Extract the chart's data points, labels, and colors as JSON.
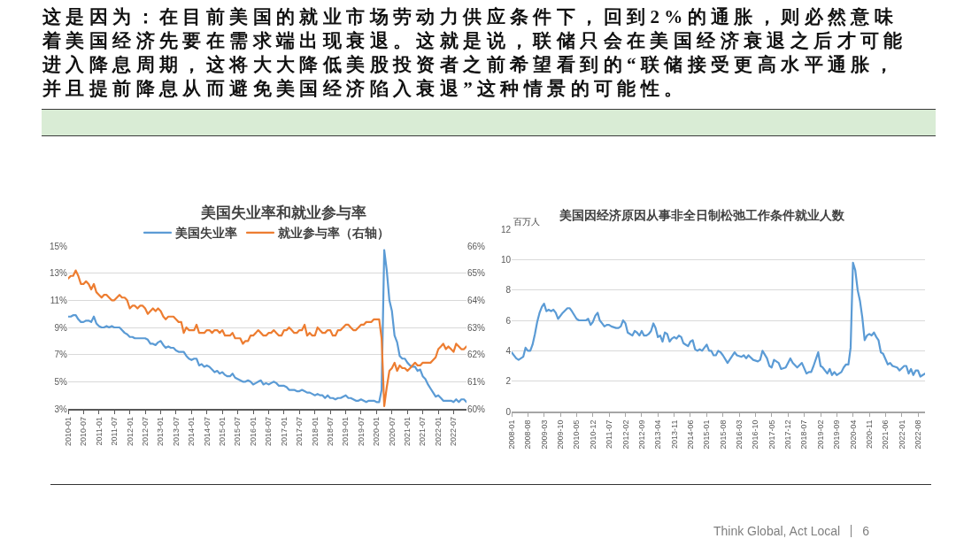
{
  "chart_data": [
    {
      "type": "other",
      "annotations": [
        "这是因为：在目前美国的就业市场劳动力供应条件下，回到2%的通胀，则必然意味着美国经济先要在需求端出现衰退。这就是说，联储只会在美国经济衰退之后才可能进入降息周期，这将大大降低美股投资者之前希望看到的“联储接受更高水平通胀，并且提前降息从而避免美国经济陷入衰退”这种情景的可能性。"
      ]
    },
    {
      "type": "line",
      "title": "美国失业率和就业参与率",
      "x": [
        "2010-01",
        "2010-02",
        "2010-03",
        "2010-04",
        "2010-05",
        "2010-06",
        "2010-07",
        "2010-08",
        "2010-09",
        "2010-10",
        "2010-11",
        "2010-12",
        "2011-01",
        "2011-02",
        "2011-03",
        "2011-04",
        "2011-05",
        "2011-06",
        "2011-07",
        "2011-08",
        "2011-09",
        "2011-10",
        "2011-11",
        "2011-12",
        "2012-01",
        "2012-02",
        "2012-03",
        "2012-04",
        "2012-05",
        "2012-06",
        "2012-07",
        "2012-08",
        "2012-09",
        "2012-10",
        "2012-11",
        "2012-12",
        "2013-01",
        "2013-02",
        "2013-03",
        "2013-04",
        "2013-05",
        "2013-06",
        "2013-07",
        "2013-08",
        "2013-09",
        "2013-10",
        "2013-11",
        "2013-12",
        "2014-01",
        "2014-02",
        "2014-03",
        "2014-04",
        "2014-05",
        "2014-06",
        "2014-07",
        "2014-08",
        "2014-09",
        "2014-10",
        "2014-11",
        "2014-12",
        "2015-01",
        "2015-02",
        "2015-03",
        "2015-04",
        "2015-05",
        "2015-06",
        "2015-07",
        "2015-08",
        "2015-09",
        "2015-10",
        "2015-11",
        "2015-12",
        "2016-01",
        "2016-02",
        "2016-03",
        "2016-04",
        "2016-05",
        "2016-06",
        "2016-07",
        "2016-08",
        "2016-09",
        "2016-10",
        "2016-11",
        "2016-12",
        "2017-01",
        "2017-02",
        "2017-03",
        "2017-04",
        "2017-05",
        "2017-06",
        "2017-07",
        "2017-08",
        "2017-09",
        "2017-10",
        "2017-11",
        "2017-12",
        "2018-01",
        "2018-02",
        "2018-03",
        "2018-04",
        "2018-05",
        "2018-06",
        "2018-07",
        "2018-08",
        "2018-09",
        "2018-10",
        "2018-11",
        "2018-12",
        "2019-01",
        "2019-02",
        "2019-03",
        "2019-04",
        "2019-05",
        "2019-06",
        "2019-07",
        "2019-08",
        "2019-09",
        "2019-10",
        "2019-11",
        "2019-12",
        "2020-01",
        "2020-02",
        "2020-03",
        "2020-04",
        "2020-05",
        "2020-06",
        "2020-07",
        "2020-08",
        "2020-09",
        "2020-10",
        "2020-11",
        "2020-12",
        "2021-01",
        "2021-02",
        "2021-03",
        "2021-04",
        "2021-05",
        "2021-06",
        "2021-07",
        "2021-08",
        "2021-09",
        "2021-10",
        "2021-11",
        "2021-12",
        "2022-01",
        "2022-02",
        "2022-03",
        "2022-04",
        "2022-05",
        "2022-06",
        "2022-07",
        "2022-08",
        "2022-09",
        "2022-10",
        "2022-11",
        "2022-12"
      ],
      "series": [
        {
          "name": "美国失业率",
          "color": "#5b9bd5",
          "values": [
            9.8,
            9.8,
            9.9,
            9.9,
            9.6,
            9.4,
            9.4,
            9.5,
            9.5,
            9.4,
            9.8,
            9.3,
            9.1,
            9.0,
            9.0,
            9.1,
            9.0,
            9.1,
            9.0,
            9.0,
            9.0,
            8.8,
            8.6,
            8.5,
            8.3,
            8.3,
            8.2,
            8.2,
            8.2,
            8.2,
            8.2,
            8.1,
            7.8,
            7.8,
            7.7,
            7.9,
            8.0,
            7.7,
            7.5,
            7.6,
            7.5,
            7.5,
            7.3,
            7.2,
            7.2,
            7.2,
            6.9,
            6.7,
            6.6,
            6.7,
            6.7,
            6.2,
            6.3,
            6.1,
            6.2,
            6.1,
            5.9,
            5.7,
            5.8,
            5.6,
            5.7,
            5.5,
            5.4,
            5.4,
            5.6,
            5.3,
            5.2,
            5.1,
            5.0,
            5.0,
            5.1,
            5.0,
            4.8,
            4.9,
            5.0,
            5.1,
            4.8,
            4.9,
            4.8,
            4.9,
            5.0,
            4.9,
            4.7,
            4.7,
            4.7,
            4.6,
            4.4,
            4.4,
            4.4,
            4.3,
            4.3,
            4.4,
            4.3,
            4.2,
            4.2,
            4.1,
            4.0,
            4.1,
            4.0,
            4.0,
            3.8,
            4.0,
            3.8,
            3.8,
            3.7,
            3.8,
            3.8,
            3.9,
            4.0,
            3.8,
            3.8,
            3.7,
            3.6,
            3.6,
            3.7,
            3.6,
            3.5,
            3.6,
            3.6,
            3.6,
            3.5,
            3.5,
            4.4,
            14.7,
            13.2,
            11.0,
            10.2,
            8.4,
            7.9,
            6.9,
            6.7,
            6.7,
            6.4,
            6.2,
            6.1,
            6.1,
            5.8,
            5.9,
            5.4,
            5.2,
            4.8,
            4.5,
            4.2,
            3.9,
            4.0,
            3.8,
            3.6,
            3.6,
            3.6,
            3.6,
            3.5,
            3.7,
            3.5,
            3.7,
            3.7,
            3.5
          ]
        },
        {
          "name": "就业参与率（右轴）",
          "color": "#ed7d31",
          "axis": "y2",
          "values": [
            64.8,
            64.9,
            64.9,
            65.1,
            64.9,
            64.6,
            64.6,
            64.7,
            64.6,
            64.4,
            64.6,
            64.3,
            64.2,
            64.1,
            64.2,
            64.2,
            64.1,
            64.0,
            64.0,
            64.1,
            64.2,
            64.1,
            64.1,
            64.0,
            63.7,
            63.8,
            63.8,
            63.7,
            63.8,
            63.8,
            63.7,
            63.5,
            63.6,
            63.7,
            63.6,
            63.7,
            63.6,
            63.4,
            63.3,
            63.4,
            63.4,
            63.4,
            63.3,
            63.2,
            63.2,
            62.8,
            63.0,
            62.9,
            62.9,
            62.9,
            63.1,
            62.8,
            62.8,
            62.8,
            62.9,
            62.9,
            62.8,
            62.9,
            62.9,
            62.8,
            62.9,
            62.7,
            62.7,
            62.7,
            62.8,
            62.6,
            62.6,
            62.6,
            62.4,
            62.5,
            62.5,
            62.7,
            62.7,
            62.8,
            62.9,
            62.8,
            62.7,
            62.7,
            62.8,
            62.8,
            62.9,
            62.8,
            62.7,
            62.7,
            62.9,
            62.9,
            63.0,
            62.9,
            62.8,
            62.8,
            62.9,
            62.9,
            63.1,
            62.7,
            62.8,
            62.7,
            62.7,
            63.0,
            62.9,
            62.8,
            62.8,
            62.9,
            62.9,
            62.7,
            62.7,
            62.9,
            62.9,
            63.0,
            63.1,
            63.1,
            63.0,
            62.9,
            62.9,
            63.0,
            63.1,
            63.1,
            63.2,
            63.2,
            63.2,
            63.3,
            63.3,
            63.3,
            62.6,
            60.1,
            60.8,
            61.4,
            61.5,
            61.7,
            61.4,
            61.6,
            61.5,
            61.5,
            61.4,
            61.5,
            61.6,
            61.7,
            61.6,
            61.6,
            61.7,
            61.7,
            61.7,
            61.7,
            61.8,
            61.9,
            62.2,
            62.3,
            62.4,
            62.2,
            62.3,
            62.2,
            62.1,
            62.4,
            62.3,
            62.2,
            62.2,
            62.3
          ]
        }
      ],
      "xlim": [
        "2010-01",
        "2022-12"
      ],
      "xticks": [
        "2010-01",
        "2010-07",
        "2011-01",
        "2011-07",
        "2012-01",
        "2012-07",
        "2013-01",
        "2013-07",
        "2014-01",
        "2014-07",
        "2015-01",
        "2015-07",
        "2016-01",
        "2016-07",
        "2017-01",
        "2017-07",
        "2018-01",
        "2018-07",
        "2019-01",
        "2019-07",
        "2020-01",
        "2020-07",
        "2021-01",
        "2021-07",
        "2022-01",
        "2022-07"
      ],
      "ylim": [
        3,
        15
      ],
      "yticks": [
        {
          "value": 3,
          "label": "3%"
        },
        {
          "value": 5,
          "label": "5%"
        },
        {
          "value": 7,
          "label": "7%"
        },
        {
          "value": 9,
          "label": "9%"
        },
        {
          "value": 11,
          "label": "11%"
        },
        {
          "value": 13,
          "label": "13%"
        },
        {
          "value": 15,
          "label": "15%"
        }
      ],
      "y2lim": [
        60,
        66
      ],
      "y2ticks": [
        {
          "value": 60,
          "label": "60%"
        },
        {
          "value": 61,
          "label": "61%"
        },
        {
          "value": 62,
          "label": "62%"
        },
        {
          "value": 63,
          "label": "63%"
        },
        {
          "value": 64,
          "label": "64%"
        },
        {
          "value": 65,
          "label": "65%"
        },
        {
          "value": 66,
          "label": "66%"
        }
      ],
      "grid": "y",
      "legend": "top"
    },
    {
      "type": "line",
      "title": "美国因经济原因从事非全日制松弛工作条件就业人数",
      "ylabel": "百万人",
      "x": [
        "2008-01",
        "2008-03",
        "2008-04",
        "2008-06",
        "2008-07",
        "2008-08",
        "2008-09",
        "2008-10",
        "2008-11",
        "2008-12",
        "2009-01",
        "2009-02",
        "2009-03",
        "2009-04",
        "2009-05",
        "2009-06",
        "2009-07",
        "2009-08",
        "2009-09",
        "2009-11",
        "2010-01",
        "2010-02",
        "2010-03",
        "2010-05",
        "2010-06",
        "2010-09",
        "2010-10",
        "2010-11",
        "2010-12",
        "2011-01",
        "2011-02",
        "2011-03",
        "2011-04",
        "2011-05",
        "2011-06",
        "2011-07",
        "2011-08",
        "2011-10",
        "2011-11",
        "2011-12",
        "2012-01",
        "2012-02",
        "2012-03",
        "2012-05",
        "2012-06",
        "2012-07",
        "2012-08",
        "2012-09",
        "2012-10",
        "2012-11",
        "2012-12",
        "2013-01",
        "2013-02",
        "2013-03",
        "2013-04",
        "2013-05",
        "2013-06",
        "2013-07",
        "2013-08",
        "2013-09",
        "2013-10",
        "2013-11",
        "2013-12",
        "2014-01",
        "2014-02",
        "2014-03",
        "2014-04",
        "2014-05",
        "2014-06",
        "2014-07",
        "2014-08",
        "2014-09",
        "2014-10",
        "2014-11",
        "2014-12",
        "2015-01",
        "2015-02",
        "2015-03",
        "2015-04",
        "2015-05",
        "2015-06",
        "2015-07",
        "2015-08",
        "2015-10",
        "2016-01",
        "2016-02",
        "2016-04",
        "2016-05",
        "2016-06",
        "2016-07",
        "2016-09",
        "2016-11",
        "2016-12",
        "2017-01",
        "2017-03",
        "2017-04",
        "2017-05",
        "2017-06",
        "2017-08",
        "2017-09",
        "2017-11",
        "2018-01",
        "2018-02",
        "2018-04",
        "2018-06",
        "2018-08",
        "2018-09",
        "2018-10",
        "2018-11",
        "2019-01",
        "2019-02",
        "2019-03",
        "2019-05",
        "2019-06",
        "2019-07",
        "2019-08",
        "2019-09",
        "2019-10",
        "2019-11",
        "2019-12",
        "2020-01",
        "2020-02",
        "2020-03",
        "2020-04",
        "2020-05",
        "2020-06",
        "2020-07",
        "2020-08",
        "2020-09",
        "2020-10",
        "2020-11",
        "2020-12",
        "2021-01",
        "2021-02",
        "2021-03",
        "2021-04",
        "2021-05",
        "2021-07",
        "2021-08",
        "2021-09",
        "2021-11",
        "2021-12",
        "2022-02",
        "2022-03",
        "2022-04",
        "2022-05",
        "2022-06",
        "2022-07",
        "2022-08",
        "2022-09",
        "2022-11"
      ],
      "series": [
        {
          "color": "#5b9bd5",
          "values": [
            3.9,
            3.5,
            3.4,
            3.6,
            4.2,
            4.0,
            4.0,
            4.4,
            5.1,
            5.9,
            6.5,
            6.9,
            7.1,
            6.6,
            6.7,
            6.6,
            6.7,
            6.5,
            6.1,
            6.5,
            6.8,
            6.8,
            6.6,
            6.1,
            6.0,
            6.0,
            6.1,
            5.7,
            5.9,
            6.3,
            6.5,
            6.0,
            5.8,
            5.6,
            5.7,
            5.7,
            5.6,
            5.5,
            5.5,
            5.6,
            6.0,
            5.8,
            5.2,
            5.0,
            5.3,
            5.2,
            5.0,
            5.3,
            5.0,
            5.0,
            5.1,
            5.3,
            5.8,
            5.5,
            4.9,
            5.0,
            4.6,
            5.2,
            5.1,
            4.6,
            4.8,
            4.9,
            4.8,
            5.0,
            4.9,
            4.5,
            4.4,
            4.3,
            4.6,
            4.7,
            4.1,
            4.0,
            4.1,
            4.0,
            4.2,
            4.4,
            4.0,
            4.0,
            3.7,
            3.7,
            4.0,
            3.9,
            3.7,
            3.2,
            3.9,
            3.7,
            3.6,
            3.7,
            3.5,
            3.7,
            3.4,
            3.3,
            3.4,
            4.0,
            3.5,
            3.0,
            2.9,
            3.4,
            3.2,
            2.8,
            2.9,
            3.5,
            3.2,
            2.9,
            3.2,
            2.5,
            2.6,
            2.6,
            3.0,
            3.9,
            3.0,
            2.9,
            2.5,
            2.8,
            2.4,
            2.6,
            2.4,
            2.5,
            2.6,
            2.9,
            3.1,
            3.1,
            4.2,
            9.8,
            9.3,
            8.0,
            7.3,
            6.2,
            4.7,
            5.0,
            5.1,
            5.0,
            5.2,
            4.9,
            4.7,
            3.9,
            3.8,
            3.1,
            3.2,
            3.0,
            2.9,
            2.7,
            3.0,
            3.0,
            2.5,
            2.8,
            2.4,
            2.7,
            2.7,
            2.3,
            2.5
          ]
        }
      ],
      "xlim": [
        "2008-01",
        "2022-11"
      ],
      "xticks": [
        "2008-01",
        "2008-08",
        "2009-03",
        "2009-10",
        "2010-05",
        "2010-12",
        "2011-07",
        "2012-02",
        "2012-09",
        "2013-04",
        "2013-11",
        "2014-06",
        "2015-01",
        "2015-08",
        "2016-03",
        "2016-10",
        "2017-05",
        "2017-12",
        "2018-07",
        "2019-02",
        "2019-09",
        "2020-04",
        "2020-11",
        "2021-06",
        "2022-01",
        "2022-08"
      ],
      "ylim": [
        0,
        12
      ],
      "yticks": [
        0,
        2,
        4,
        6,
        8,
        10,
        12
      ],
      "grid": "y"
    },
    {
      "type": "other",
      "annotations": [
        "Think Global, Act Local",
        "6"
      ]
    }
  ]
}
